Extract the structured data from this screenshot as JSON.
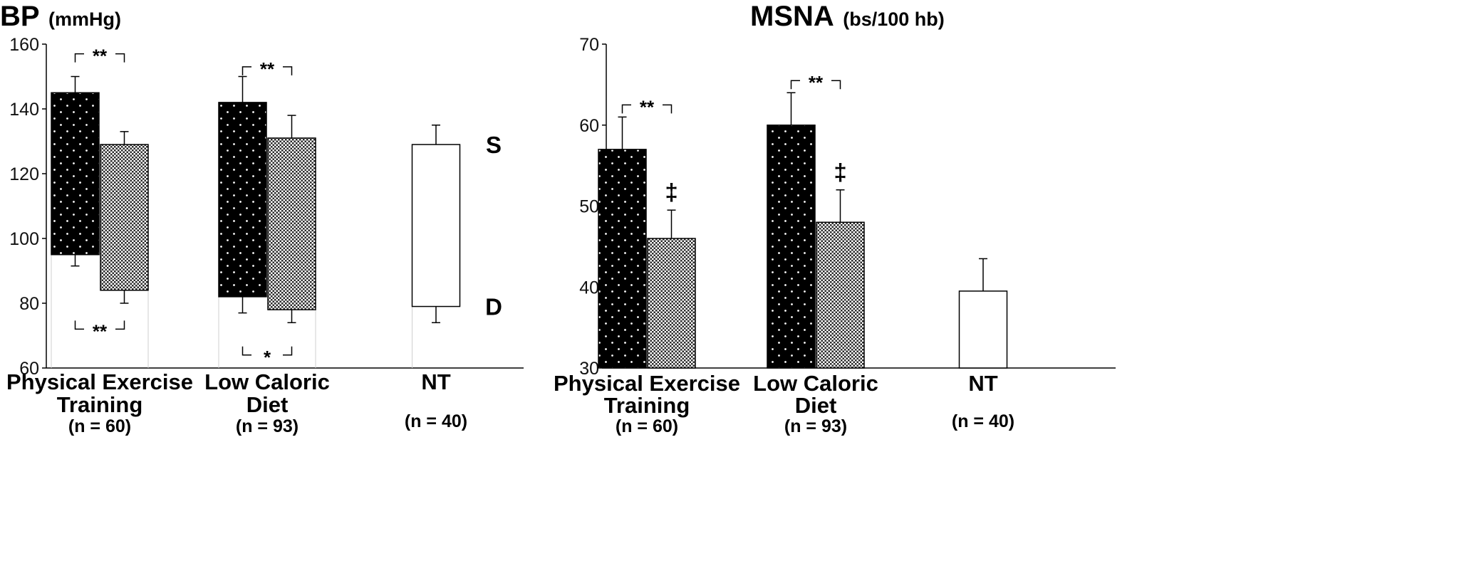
{
  "chart_data": [
    {
      "type": "bar",
      "title": "BP",
      "unit": "(mmHg)",
      "ylim": [
        60,
        160
      ],
      "yticks": [
        60,
        80,
        100,
        120,
        140,
        160
      ],
      "categories": [
        {
          "lines": [
            "Physical Exercise",
            "Training"
          ],
          "n": "(n = 60)"
        },
        {
          "lines": [
            "Low Caloric",
            "Diet"
          ],
          "n": "(n = 93)"
        },
        {
          "lines": [
            "NT"
          ],
          "n": "(n = 40)"
        }
      ],
      "bars": [
        {
          "category": 0,
          "pattern": "before",
          "systolic": 145,
          "diastolic": 95,
          "err_systolic": 150,
          "err_diastolic": 91.5
        },
        {
          "category": 0,
          "pattern": "after",
          "systolic": 129,
          "diastolic": 84,
          "err_systolic": 133,
          "err_diastolic": 80
        },
        {
          "category": 1,
          "pattern": "before",
          "systolic": 142,
          "diastolic": 82,
          "err_systolic": 150,
          "err_diastolic": 77
        },
        {
          "category": 1,
          "pattern": "after",
          "systolic": 131,
          "diastolic": 78,
          "err_systolic": 138,
          "err_diastolic": 74
        },
        {
          "category": 2,
          "pattern": "nt",
          "systolic": 129,
          "diastolic": 79,
          "err_systolic": 135,
          "err_diastolic": 74
        }
      ],
      "sd_labels": [
        "S",
        "D"
      ],
      "significance": [
        {
          "category": 0,
          "position": "top",
          "y": 157,
          "label": "**"
        },
        {
          "category": 0,
          "position": "bottom",
          "y": 72,
          "label": "**"
        },
        {
          "category": 1,
          "position": "top",
          "y": 153,
          "label": "**"
        },
        {
          "category": 1,
          "position": "bottom",
          "y": 64,
          "label": "*"
        }
      ]
    },
    {
      "type": "bar",
      "title": "MSNA",
      "unit": "(bs/100 hb)",
      "ylim": [
        30,
        70
      ],
      "yticks": [
        30,
        40,
        50,
        60,
        70
      ],
      "categories": [
        {
          "lines": [
            "Physical Exercise",
            "Training"
          ],
          "n": "(n = 60)"
        },
        {
          "lines": [
            "Low Caloric",
            "Diet"
          ],
          "n": "(n = 93)"
        },
        {
          "lines": [
            "NT"
          ],
          "n": "(n = 40)"
        }
      ],
      "bars": [
        {
          "category": 0,
          "pattern": "before",
          "value": 57,
          "err": 61
        },
        {
          "category": 0,
          "pattern": "after",
          "value": 46,
          "err": 49.5,
          "marker": "‡"
        },
        {
          "category": 1,
          "pattern": "before",
          "value": 60,
          "err": 64
        },
        {
          "category": 1,
          "pattern": "after",
          "value": 48,
          "err": 52,
          "marker": "‡"
        },
        {
          "category": 2,
          "pattern": "nt",
          "value": 39.5,
          "err": 43.5
        }
      ],
      "significance": [
        {
          "category": 0,
          "position": "top",
          "y": 62.5,
          "label": "**"
        },
        {
          "category": 1,
          "position": "top",
          "y": 65.5,
          "label": "**"
        }
      ]
    }
  ]
}
